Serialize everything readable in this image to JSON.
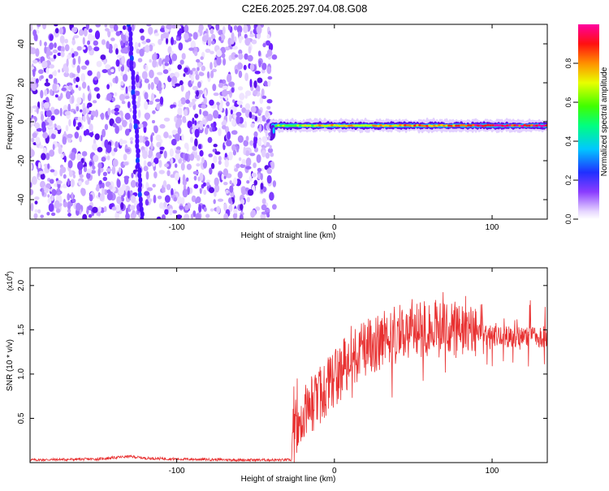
{
  "title": "C2E6.2025.297.04.08.G08",
  "colors": {
    "signal": "#e83030",
    "axis": "#000000"
  },
  "chart_data": [
    {
      "type": "heatmap",
      "xlabel": "Height of straight line (km)",
      "ylabel": "Frequency (Hz)",
      "xlim": [
        -193,
        135
      ],
      "ylim": [
        -50,
        50
      ],
      "xticks": [
        -100,
        0,
        100
      ],
      "xtick_labels": [
        "-100",
        "0",
        "100"
      ],
      "yticks": [
        -40,
        -20,
        0,
        20,
        40
      ],
      "ytick_labels": [
        "-40",
        "-20",
        "0",
        "20",
        "40"
      ],
      "colorbar": {
        "label": "Normalized spectral amplitude",
        "range": [
          0,
          1
        ],
        "ticks": [
          0.0,
          0.2,
          0.4,
          0.6,
          0.8
        ],
        "tick_labels": [
          "0.0",
          "0.2",
          "0.4",
          "0.6",
          "0.8"
        ],
        "colormap": "rainbow (white-violet-blue-cyan-green-yellow-red-magenta)"
      },
      "features": {
        "noise_region_x": [
          -193,
          -40
        ],
        "signal_onset_x": -40,
        "signal_line_frequency": -2,
        "diagonal_streak": {
          "x": [
            -130,
            -122
          ],
          "y": [
            50,
            -50
          ]
        }
      }
    },
    {
      "type": "line",
      "xlabel": "Height of straight line (km)",
      "ylabel": "SNR (10 * v/v)",
      "exponent_label": "(x10",
      "exponent_power": "4",
      "exponent_close": ")",
      "xlim": [
        -193,
        135
      ],
      "ylim": [
        0,
        2.2
      ],
      "xticks": [
        -100,
        0,
        100
      ],
      "xtick_labels": [
        "-100",
        "0",
        "100"
      ],
      "yticks": [
        0.5,
        1.0,
        1.5,
        2.0
      ],
      "ytick_labels": [
        "0.5",
        "1.0",
        "1.5",
        "2.0"
      ],
      "series_profile": {
        "x": [
          -193,
          -150,
          -130,
          -120,
          -100,
          -60,
          -27,
          -25,
          -20,
          -15,
          -10,
          0,
          10,
          20,
          30,
          40,
          50,
          60,
          70,
          80,
          90,
          100,
          110,
          120,
          135
        ],
        "y": [
          0.03,
          0.04,
          0.07,
          0.05,
          0.04,
          0.03,
          0.03,
          0.4,
          0.55,
          0.65,
          0.75,
          0.95,
          1.15,
          1.3,
          1.38,
          1.45,
          1.5,
          1.52,
          1.5,
          1.48,
          1.45,
          1.43,
          1.42,
          1.42,
          1.42
        ]
      }
    }
  ]
}
